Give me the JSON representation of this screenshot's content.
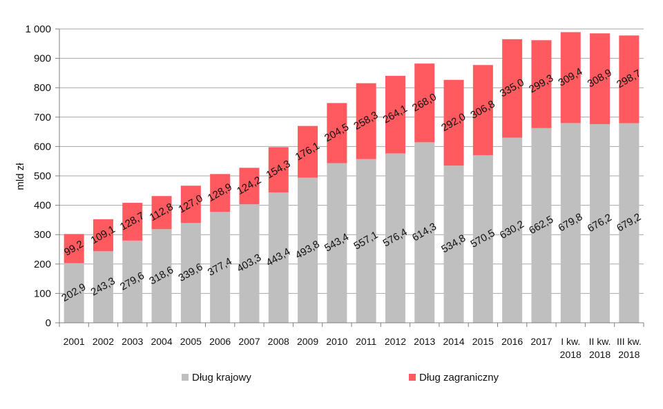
{
  "colors": {
    "domestic": "#bfbfbf",
    "foreign": "#ff5a5f",
    "grid": "#a6a6a6",
    "axis": "#7f7f7f",
    "text": "#111111"
  },
  "chart_data": {
    "type": "bar",
    "stacked": true,
    "title": "",
    "xlabel": "",
    "ylabel": "mld zł",
    "ylim": [
      0,
      1000
    ],
    "yticks": [
      0,
      100,
      200,
      300,
      400,
      500,
      600,
      700,
      800,
      900,
      1000
    ],
    "ytick_labels": [
      "0",
      "100",
      "200",
      "300",
      "400",
      "500",
      "600",
      "700",
      "800",
      "900",
      "1 000"
    ],
    "grid": true,
    "legend_position": "bottom",
    "categories": [
      [
        "2001"
      ],
      [
        "2002"
      ],
      [
        "2003"
      ],
      [
        "2004"
      ],
      [
        "2005"
      ],
      [
        "2006"
      ],
      [
        "2007"
      ],
      [
        "2008"
      ],
      [
        "2009"
      ],
      [
        "2010"
      ],
      [
        "2011"
      ],
      [
        "2012"
      ],
      [
        "2013"
      ],
      [
        "2014"
      ],
      [
        "2015"
      ],
      [
        "2016"
      ],
      [
        "2017"
      ],
      [
        "I kw.",
        "2018"
      ],
      [
        "II kw.",
        "2018"
      ],
      [
        "III kw.",
        "2018"
      ]
    ],
    "series": [
      {
        "name": "Dług krajowy",
        "key": "domestic",
        "values": [
          202.9,
          243.3,
          279.6,
          318.6,
          339.6,
          377.4,
          403.3,
          443.4,
          493.8,
          543.4,
          557.1,
          576.4,
          614.3,
          534.8,
          570.5,
          630.2,
          662.5,
          679.8,
          676.2,
          679.2
        ],
        "labels": [
          "202,9",
          "243,3",
          "279,6",
          "318,6",
          "339,6",
          "377,4",
          "403,3",
          "443,4",
          "493,8",
          "543,4",
          "557,1",
          "576,4",
          "614,3",
          "534,8",
          "570,5",
          "630,2",
          "662,5",
          "679,8",
          "676,2",
          "679,2"
        ]
      },
      {
        "name": "Dług zagraniczny",
        "key": "foreign",
        "values": [
          99.2,
          109.1,
          128.7,
          112.8,
          127.0,
          128.9,
          124.2,
          154.3,
          176.1,
          204.5,
          258.3,
          264.1,
          268.0,
          292.0,
          306.8,
          335.0,
          299.3,
          309.4,
          308.9,
          298.7
        ],
        "labels": [
          "99,2",
          "109,1",
          "128,7",
          "112,8",
          "127,0",
          "128,9",
          "124,2",
          "154,3",
          "176,1",
          "204,5",
          "258,3",
          "264,1",
          "268,0",
          "292,0",
          "306,8",
          "335,0",
          "299,3",
          "309,4",
          "308,9",
          "298,7"
        ]
      }
    ]
  }
}
